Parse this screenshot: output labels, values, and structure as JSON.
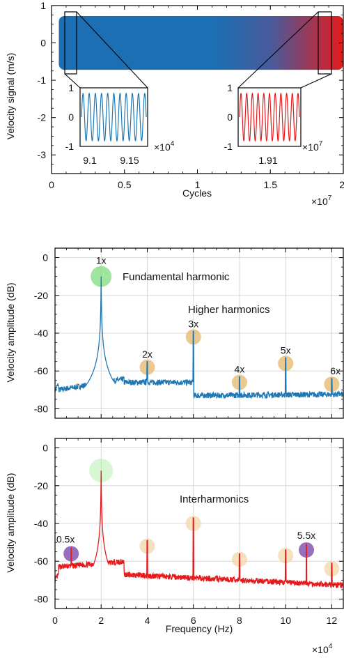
{
  "chart_data": [
    {
      "type": "line",
      "ylabel": "Velocity signal (m/s)",
      "xlabel": "Cycles",
      "x_multiplier": "×10",
      "x_multiplier_exp": "7",
      "xlim": [
        0,
        2
      ],
      "ylim": [
        -3.5,
        1
      ],
      "x_ticks": [
        "0",
        "0.5",
        "1",
        "1.5",
        "2"
      ],
      "y_ticks": [
        "1",
        "0",
        "-1",
        "-2",
        "-3"
      ],
      "grid": false,
      "band": {
        "y_top": 0.72,
        "y_bottom": -0.72,
        "color_start": "#1f77b4",
        "color_end": "#e41a1c"
      },
      "insets": [
        {
          "x_ticks": [
            "9.1",
            "9.15"
          ],
          "y_ticks": [
            "1",
            "0",
            "-1"
          ],
          "multiplier": "×10",
          "multiplier_exp": "4",
          "color": "#1f77b4"
        },
        {
          "x_ticks": [
            "1.91"
          ],
          "y_ticks": [
            "1",
            "0",
            "-1"
          ],
          "multiplier": "×10",
          "multiplier_exp": "7",
          "color": "#e41a1c"
        }
      ]
    },
    {
      "type": "line",
      "ylabel": "Velocity amplitude (dB)",
      "xlim": [
        0,
        12.5
      ],
      "ylim": [
        -85,
        5
      ],
      "y_ticks": [
        "0",
        "-20",
        "-40",
        "-60",
        "-80"
      ],
      "grid": true,
      "series_color": "#1f77b4",
      "peaks": [
        {
          "x": 2,
          "y": -10,
          "label": "1x"
        },
        {
          "x": 4,
          "y": -58,
          "label": "2x"
        },
        {
          "x": 6,
          "y": -42,
          "label": "3x"
        },
        {
          "x": 8,
          "y": -66,
          "label": "4x"
        },
        {
          "x": 10,
          "y": -56,
          "label": "5x"
        },
        {
          "x": 12,
          "y": -67,
          "label": "6x"
        }
      ],
      "annotations": [
        {
          "text": "Fundamental harmonic",
          "color": "#5cc95c"
        },
        {
          "text": "Higher harmonics",
          "color": "#e0b35a"
        }
      ]
    },
    {
      "type": "line",
      "ylabel": "Velocity amplitude (dB)",
      "xlabel": "Frequency (Hz)",
      "x_multiplier": "×10",
      "x_multiplier_exp": "4",
      "xlim": [
        0,
        12.5
      ],
      "ylim": [
        -85,
        5
      ],
      "x_ticks": [
        "0",
        "2",
        "4",
        "6",
        "8",
        "10",
        "12"
      ],
      "y_ticks": [
        "0",
        "-20",
        "-40",
        "-60",
        "-80"
      ],
      "grid": true,
      "series_color": "#e41a1c",
      "peaks": [
        {
          "x": 0.7,
          "y": -56,
          "label": "0.5x",
          "kind": "inter"
        },
        {
          "x": 2,
          "y": -12,
          "label": "",
          "kind": "fundamental"
        },
        {
          "x": 4,
          "y": -52,
          "label": "",
          "kind": "harmonic"
        },
        {
          "x": 6,
          "y": -40,
          "label": "",
          "kind": "harmonic"
        },
        {
          "x": 8,
          "y": -59,
          "label": "",
          "kind": "harmonic"
        },
        {
          "x": 10,
          "y": -57,
          "label": "",
          "kind": "harmonic"
        },
        {
          "x": 10.9,
          "y": -54,
          "label": "5.5x",
          "kind": "inter"
        },
        {
          "x": 12,
          "y": -64,
          "label": "",
          "kind": "harmonic"
        }
      ],
      "annotations": [
        {
          "text": "Interharmonics",
          "color": "#8e5fb5"
        }
      ]
    }
  ]
}
